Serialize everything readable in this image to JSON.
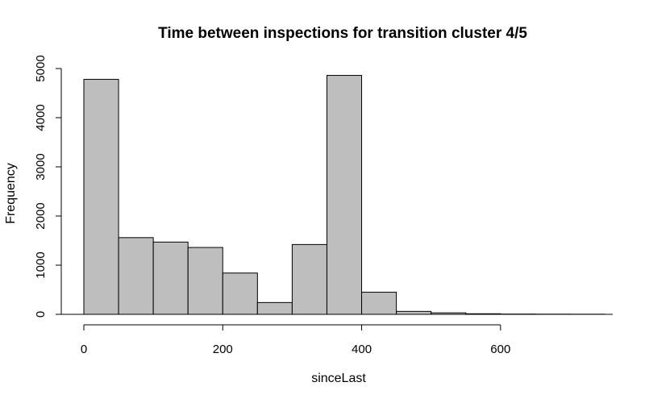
{
  "chart_data": {
    "type": "bar",
    "title": "Time between inspections for transition cluster 4/5",
    "xlabel": "sinceLast",
    "ylabel": "Frequency",
    "bin_edges": [
      0,
      50,
      100,
      150,
      200,
      250,
      300,
      350,
      400,
      450,
      500,
      550,
      600,
      650,
      700,
      750
    ],
    "values": [
      4780,
      1560,
      1470,
      1360,
      840,
      240,
      1420,
      4860,
      450,
      60,
      30,
      12,
      6,
      4,
      3
    ],
    "xlim": [
      0,
      750
    ],
    "ylim": [
      0,
      5000
    ],
    "x_ticks": [
      0,
      200,
      400,
      600
    ],
    "x_tick_labels": [
      "0",
      "200",
      "400",
      "600"
    ],
    "y_ticks": [
      0,
      1000,
      2000,
      3000,
      4000,
      5000
    ],
    "y_tick_labels": [
      "0",
      "1000",
      "2000",
      "3000",
      "4000",
      "5000"
    ],
    "bar_color": "#bebebe",
    "edge_color": "#000000",
    "grid": false
  }
}
